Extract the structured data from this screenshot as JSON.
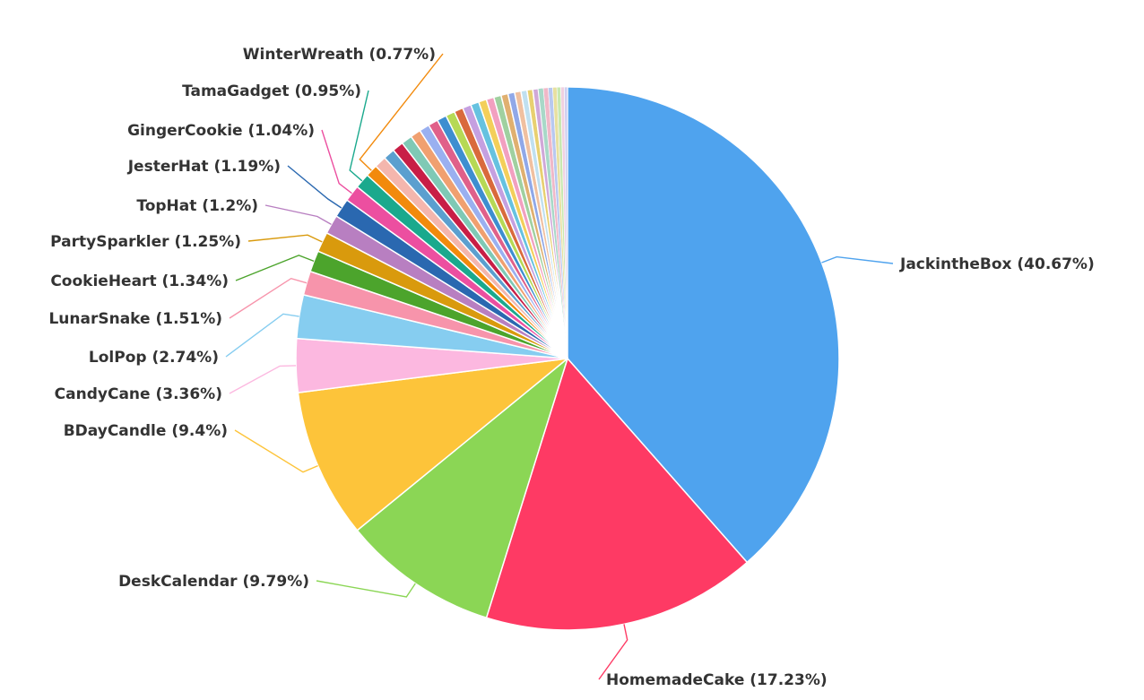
{
  "chart_data": {
    "type": "pie",
    "title": "",
    "slices": [
      {
        "name": "JackintheBox",
        "value": 40.67,
        "label": "JackintheBox (40.67%)",
        "color": "#4fa3ee"
      },
      {
        "name": "HomemadeCake",
        "value": 17.23,
        "label": "HomemadeCake (17.23%)",
        "color": "#fe3a64"
      },
      {
        "name": "DeskCalendar",
        "value": 9.79,
        "label": "DeskCalendar (9.79%)",
        "color": "#8bd655"
      },
      {
        "name": "BDayCandle",
        "value": 9.4,
        "label": "BDayCandle (9.4%)",
        "color": "#fdc43a"
      },
      {
        "name": "CandyCane",
        "value": 3.36,
        "label": "CandyCane (3.36%)",
        "color": "#fcb8e0"
      },
      {
        "name": "LolPop",
        "value": 2.74,
        "label": "LolPop (2.74%)",
        "color": "#86cdf0"
      },
      {
        "name": "LunarSnake",
        "value": 1.51,
        "label": "LunarSnake (1.51%)",
        "color": "#f794ab"
      },
      {
        "name": "CookieHeart",
        "value": 1.34,
        "label": "CookieHeart (1.34%)",
        "color": "#4ca42c"
      },
      {
        "name": "PartySparkler",
        "value": 1.25,
        "label": "PartySparkler (1.25%)",
        "color": "#d99a0d"
      },
      {
        "name": "TopHat",
        "value": 1.2,
        "label": "TopHat (1.2%)",
        "color": "#b87fc1"
      },
      {
        "name": "JesterHat",
        "value": 1.19,
        "label": "JesterHat (1.19%)",
        "color": "#2a68b0"
      },
      {
        "name": "GingerCookie",
        "value": 1.04,
        "label": "GingerCookie (1.04%)",
        "color": "#ec4fa0"
      },
      {
        "name": "TamaGadget",
        "value": 0.95,
        "label": "TamaGadget (0.95%)",
        "color": "#1aa98d"
      },
      {
        "name": "WinterWreath",
        "value": 0.77,
        "label": "WinterWreath (0.77%)",
        "color": "#f28a0c"
      },
      {
        "name": "",
        "value": 0.75,
        "label": "",
        "color": "#f4b6ad"
      },
      {
        "name": "",
        "value": 0.72,
        "label": "",
        "color": "#5b9fcf"
      },
      {
        "name": "",
        "value": 0.7,
        "label": "",
        "color": "#c81e46"
      },
      {
        "name": "",
        "value": 0.68,
        "label": "",
        "color": "#7fc9b5"
      },
      {
        "name": "",
        "value": 0.66,
        "label": "",
        "color": "#f0a070"
      },
      {
        "name": "",
        "value": 0.64,
        "label": "",
        "color": "#9ab0f0"
      },
      {
        "name": "",
        "value": 0.62,
        "label": "",
        "color": "#e0608a"
      },
      {
        "name": "",
        "value": 0.6,
        "label": "",
        "color": "#3e8ed0"
      },
      {
        "name": "",
        "value": 0.58,
        "label": "",
        "color": "#b6d955"
      },
      {
        "name": "",
        "value": 0.56,
        "label": "",
        "color": "#d96a3c"
      },
      {
        "name": "",
        "value": 0.54,
        "label": "",
        "color": "#c5a0e0"
      },
      {
        "name": "",
        "value": 0.52,
        "label": "",
        "color": "#66c2e0"
      },
      {
        "name": "",
        "value": 0.5,
        "label": "",
        "color": "#f3cf5a"
      },
      {
        "name": "",
        "value": 0.48,
        "label": "",
        "color": "#f2a0c0"
      },
      {
        "name": "",
        "value": 0.46,
        "label": "",
        "color": "#a0d0a0"
      },
      {
        "name": "",
        "value": 0.44,
        "label": "",
        "color": "#e0b070"
      },
      {
        "name": "",
        "value": 0.42,
        "label": "",
        "color": "#90a8e8"
      },
      {
        "name": "",
        "value": 0.4,
        "label": "",
        "color": "#f0c0a0"
      },
      {
        "name": "",
        "value": 0.38,
        "label": "",
        "color": "#c0e0f0"
      },
      {
        "name": "",
        "value": 0.36,
        "label": "",
        "color": "#e8d070"
      },
      {
        "name": "",
        "value": 0.34,
        "label": "",
        "color": "#d0a8d8"
      },
      {
        "name": "",
        "value": 0.32,
        "label": "",
        "color": "#a8d8c8"
      },
      {
        "name": "",
        "value": 0.3,
        "label": "",
        "color": "#f0b8c8"
      },
      {
        "name": "",
        "value": 0.28,
        "label": "",
        "color": "#b8c8f0"
      },
      {
        "name": "",
        "value": 0.26,
        "label": "",
        "color": "#e8e0a0"
      },
      {
        "name": "",
        "value": 0.24,
        "label": "",
        "color": "#c8e8b0"
      },
      {
        "name": "",
        "value": 0.22,
        "label": "",
        "color": "#f0d0e0"
      },
      {
        "name": "",
        "value": 0.2,
        "label": "",
        "color": "#d0d0f0"
      }
    ],
    "start_angle_deg": 0,
    "direction": "clockwise",
    "slice_border_color": "#ffffff",
    "label_color": "#333333"
  }
}
